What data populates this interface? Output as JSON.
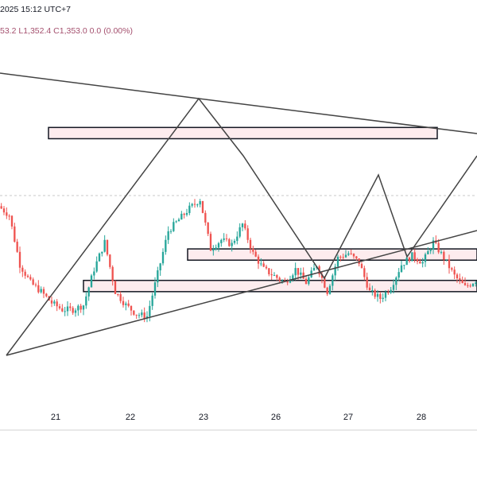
{
  "header": {
    "datetime": "2025 15:12 UTC+7",
    "ohlc": "53.2  L1,352.4  C1,353.0  0.0 (0.00%)"
  },
  "chart_data": {
    "type": "candlestick",
    "x_tick_labels": [
      "21",
      "22",
      "23",
      "26",
      "27",
      "28"
    ],
    "colors": {
      "up": "#26a69a",
      "down": "#ef5350",
      "zone_fill": "#fdecee",
      "zone_stroke": "#131722",
      "trendline": "#444444",
      "grid": "#c8c8c8"
    },
    "anchors": [
      [
        0,
        1406
      ],
      [
        4,
        1402
      ],
      [
        8,
        1380
      ],
      [
        12,
        1372
      ],
      [
        16,
        1368
      ],
      [
        20,
        1363
      ],
      [
        24,
        1360
      ],
      [
        28,
        1360
      ],
      [
        32,
        1362
      ],
      [
        36,
        1378
      ],
      [
        40,
        1390
      ],
      [
        44,
        1368
      ],
      [
        48,
        1362
      ],
      [
        52,
        1358
      ],
      [
        56,
        1357
      ],
      [
        60,
        1376
      ],
      [
        64,
        1395
      ],
      [
        68,
        1400
      ],
      [
        72,
        1405
      ],
      [
        76,
        1409
      ],
      [
        80,
        1387
      ],
      [
        84,
        1391
      ],
      [
        88,
        1389
      ],
      [
        92,
        1398
      ],
      [
        96,
        1385
      ],
      [
        100,
        1378
      ],
      [
        104,
        1375
      ],
      [
        108,
        1372
      ],
      [
        112,
        1378
      ],
      [
        116,
        1372
      ],
      [
        120,
        1380
      ],
      [
        124,
        1368
      ],
      [
        128,
        1383
      ],
      [
        132,
        1385
      ],
      [
        136,
        1381
      ],
      [
        140,
        1368
      ],
      [
        144,
        1365
      ],
      [
        148,
        1370
      ],
      [
        152,
        1380
      ],
      [
        156,
        1384
      ],
      [
        160,
        1381
      ],
      [
        164,
        1390
      ],
      [
        168,
        1383
      ],
      [
        172,
        1375
      ],
      [
        176,
        1370
      ],
      [
        180,
        1373
      ]
    ],
    "y_range": [
      1328,
      1480
    ],
    "zones": [
      {
        "from": 1436,
        "to": 1441
      },
      {
        "from": 1382,
        "to": 1387
      },
      {
        "from": 1368,
        "to": 1373
      }
    ]
  }
}
